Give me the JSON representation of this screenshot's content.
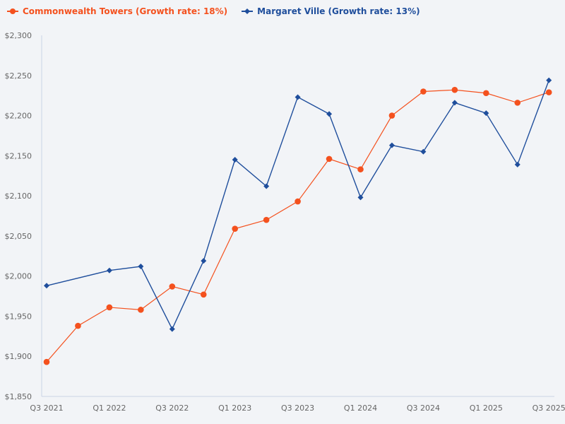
{
  "chart_data": {
    "type": "line",
    "title": "",
    "xlabel": "",
    "ylabel": "",
    "ylim": [
      1850,
      2300
    ],
    "grid": false,
    "legend_position": "top-left",
    "y_ticks": [
      "$1,850",
      "$1,900",
      "$1,950",
      "$2,000",
      "$2,050",
      "$2,100",
      "$2,150",
      "$2,200",
      "$2,250",
      "$2,300"
    ],
    "y_tick_values": [
      1850,
      1900,
      1950,
      2000,
      2050,
      2100,
      2150,
      2200,
      2250,
      2300
    ],
    "categories": [
      "Q3 2021",
      "Q4 2021",
      "Q1 2022",
      "Q2 2022",
      "Q3 2022",
      "Q4 2022",
      "Q1 2023",
      "Q2 2023",
      "Q3 2023",
      "Q4 2023",
      "Q1 2024",
      "Q2 2024",
      "Q3 2024",
      "Q4 2024",
      "Q1 2025",
      "Q2 2025",
      "Q3 2025"
    ],
    "x_tick_labels": [
      "Q3 2021",
      "Q1 2022",
      "Q3 2022",
      "Q1 2023",
      "Q3 2023",
      "Q1 2024",
      "Q3 2024",
      "Q1 2025",
      "Q3 2025"
    ],
    "series": [
      {
        "name": "Commonwealth Towers (Growth rate: 18%)",
        "color": "#f4511e",
        "marker": "circle",
        "values": [
          1893,
          1938,
          1961,
          1958,
          1987,
          1977,
          2059,
          2070,
          2093,
          2146,
          2133,
          2200,
          2230,
          2232,
          2228,
          2216,
          2229
        ]
      },
      {
        "name": "Margaret Ville (Growth rate: 13%)",
        "color": "#1f4e9c",
        "marker": "diamond",
        "values": [
          1988,
          null,
          2007,
          2012,
          1934,
          2019,
          2145,
          2112,
          2223,
          2202,
          2098,
          2163,
          2155,
          2216,
          2203,
          2139,
          2244
        ]
      }
    ]
  }
}
